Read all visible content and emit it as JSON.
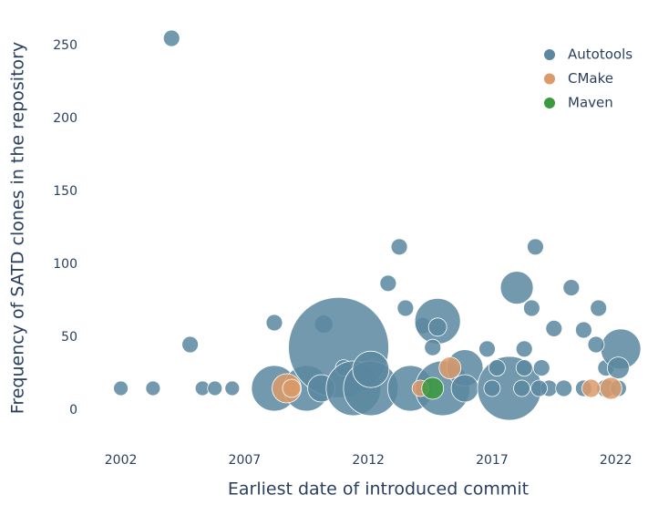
{
  "chart_data": {
    "type": "scatter",
    "x_label": "Earliest date of introduced commit",
    "y_label": "Frequency of SATD clones in the repository",
    "xlim": [
      2000.8,
      2023.3
    ],
    "ylim": [
      -25,
      275
    ],
    "xticks": [
      2002,
      2007,
      2012,
      2017,
      2022
    ],
    "yticks": [
      0,
      50,
      100,
      150,
      200,
      250
    ],
    "legend": "top-right",
    "series": [
      {
        "name": "Autotools",
        "color": "#5b87a0",
        "x": [
          2002.0,
          2003.3,
          2004.05,
          2004.8,
          2005.3,
          2005.8,
          2006.5,
          2008.2,
          2008.2,
          2009.5,
          2010.2,
          2010.8,
          2010.1,
          2011.0,
          2011.4,
          2012.1,
          2012.1,
          2012.8,
          2013.25,
          2013.5,
          2013.7,
          2014.2,
          2014.8,
          2015.0,
          2014.8,
          2014.6,
          2015.9,
          2015.9,
          2016.8,
          2017.7,
          2018.0,
          2018.3,
          2018.6,
          2018.75,
          2019.5,
          2020.2,
          2020.7,
          2021.3,
          2021.6,
          2021.6,
          2022.2,
          2022.1,
          2021.2,
          2019.3,
          2019.9,
          2020.7,
          2022.1,
          2017.0,
          2018.2,
          2018.9,
          2017.2,
          2018.3,
          2019.0
        ],
        "values": [
          15,
          15,
          255,
          45,
          15,
          15,
          15,
          60,
          15,
          15,
          59,
          43,
          15,
          29,
          15,
          15,
          28,
          87,
          112,
          70,
          15,
          58,
          61,
          15,
          57,
          43,
          29,
          15,
          42,
          15,
          84,
          42,
          70,
          112,
          56,
          84,
          55,
          70,
          15,
          29,
          42,
          29,
          45,
          15,
          15,
          15,
          15,
          15,
          15,
          15,
          29,
          29,
          29
        ],
        "sizes": [
          8,
          8,
          9,
          9,
          8,
          8,
          8,
          9,
          25,
          25,
          10,
          55,
          15,
          9,
          30,
          30,
          20,
          9,
          9,
          9,
          25,
          9,
          25,
          30,
          10,
          9,
          20,
          15,
          9,
          35,
          18,
          9,
          9,
          9,
          9,
          9,
          9,
          9,
          10,
          9,
          22,
          12,
          9,
          9,
          9,
          9,
          9,
          9,
          9,
          9,
          9,
          9,
          9
        ]
      },
      {
        "name": "CMake",
        "color": "#dc9a68",
        "x": [
          2008.7,
          2008.9,
          2014.1,
          2015.3,
          2021.0,
          2021.8
        ],
        "values": [
          15,
          15,
          15,
          29,
          15,
          15
        ],
        "sizes": [
          16,
          10,
          9,
          12,
          10,
          12
        ]
      },
      {
        "name": "Maven",
        "color": "#3b9a3e",
        "x": [
          2014.6
        ],
        "values": [
          15
        ],
        "sizes": [
          12
        ]
      }
    ]
  }
}
